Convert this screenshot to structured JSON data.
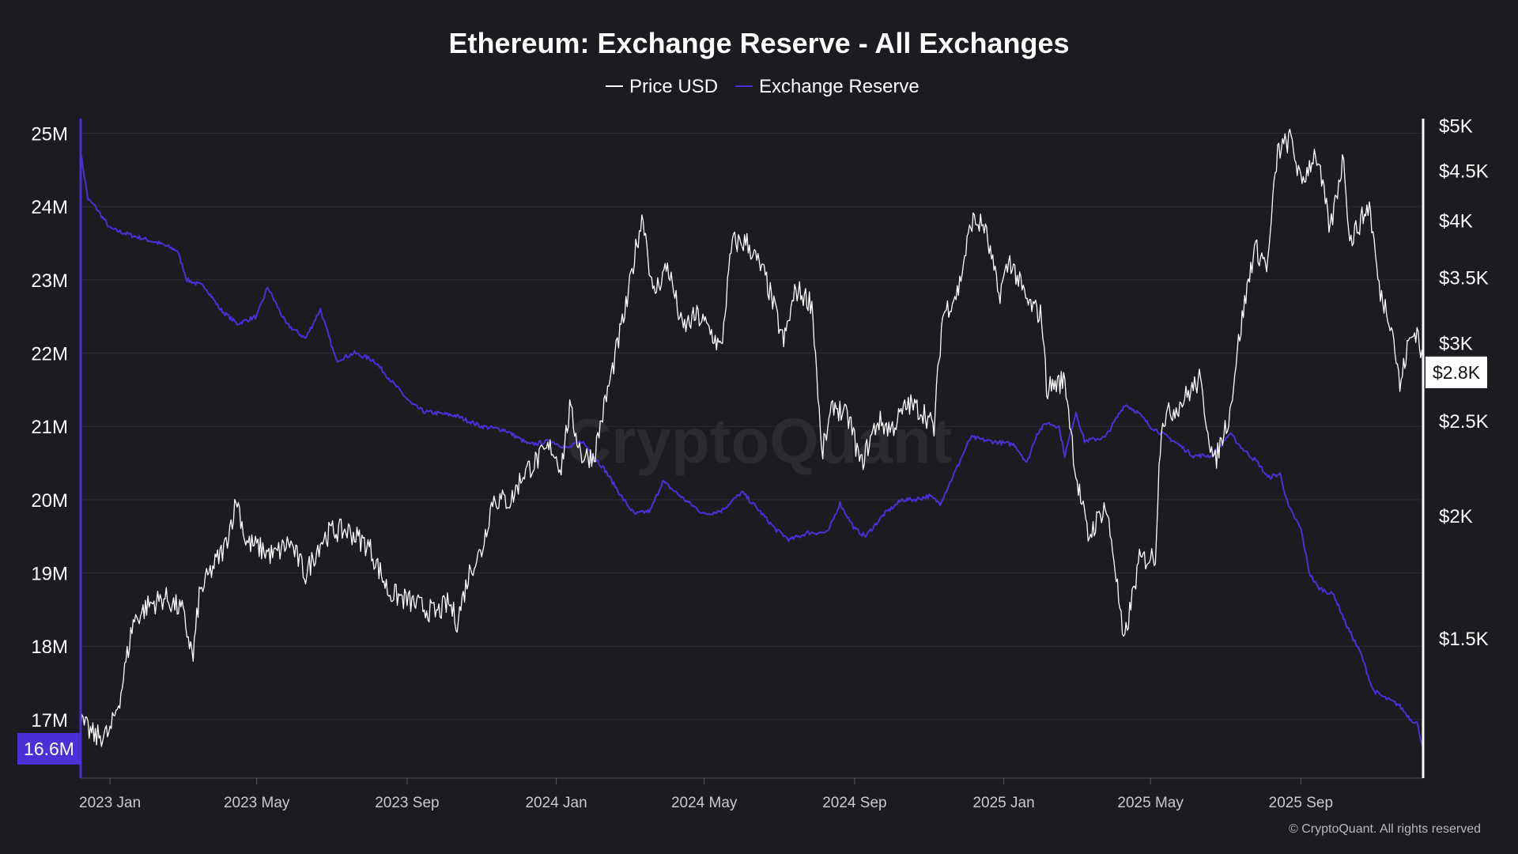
{
  "footer": "© CryptoQuant. All rights reserved",
  "watermark": "CryptoQuant",
  "colors": {
    "background": "#1b1b20",
    "price": "#ffffff",
    "reserve": "#4a30d6",
    "grid": "#2c2c33",
    "badge_reserve_bg": "#4a30d6",
    "badge_price_bg": "#ffffff"
  },
  "chart_data": {
    "type": "line",
    "title": "Ethereum: Exchange Reserve - All Exchanges",
    "legend": {
      "placement": "top-center"
    },
    "grid": true,
    "x_axis": {
      "range": [
        "2022-12-08",
        "2025-12-10"
      ],
      "ticks": [
        {
          "label": "2023 Jan",
          "date": "2023-01-01"
        },
        {
          "label": "2023 May",
          "date": "2023-05-01"
        },
        {
          "label": "2023 Sep",
          "date": "2023-09-01"
        },
        {
          "label": "2024 Jan",
          "date": "2024-01-01"
        },
        {
          "label": "2024 May",
          "date": "2024-05-01"
        },
        {
          "label": "2024 Sep",
          "date": "2024-09-01"
        },
        {
          "label": "2025 Jan",
          "date": "2025-01-01"
        },
        {
          "label": "2025 May",
          "date": "2025-05-01"
        },
        {
          "label": "2025 Sep",
          "date": "2025-09-01"
        }
      ]
    },
    "y_left": {
      "scale": "linear",
      "range": [
        16.2,
        25.2
      ],
      "ticks": [
        {
          "label": "25M",
          "value": 25
        },
        {
          "label": "24M",
          "value": 24
        },
        {
          "label": "23M",
          "value": 23
        },
        {
          "label": "22M",
          "value": 22
        },
        {
          "label": "21M",
          "value": 21
        },
        {
          "label": "20M",
          "value": 20
        },
        {
          "label": "19M",
          "value": 19
        },
        {
          "label": "18M",
          "value": 18
        },
        {
          "label": "17M",
          "value": 17
        }
      ],
      "current_label": "16.6M",
      "current_value": 16.6
    },
    "y_right": {
      "scale": "log",
      "range": [
        1080,
        5080
      ],
      "ticks": [
        {
          "label": "$5K",
          "value": 5000
        },
        {
          "label": "$4.5K",
          "value": 4500
        },
        {
          "label": "$4K",
          "value": 4000
        },
        {
          "label": "$3.5K",
          "value": 3500
        },
        {
          "label": "$3K",
          "value": 3000
        },
        {
          "label": "$2.5K",
          "value": 2500
        },
        {
          "label": "$2K",
          "value": 2000
        },
        {
          "label": "$1.5K",
          "value": 1500
        }
      ],
      "current_label": "$2.8K",
      "current_value": 2800
    },
    "series": [
      {
        "name": "Price USD",
        "axis": "right",
        "color": "#ffffff",
        "points": [
          [
            "2022-12-08",
            1230
          ],
          [
            "2022-12-20",
            1190
          ],
          [
            "2023-01-01",
            1200
          ],
          [
            "2023-01-10",
            1320
          ],
          [
            "2023-01-20",
            1560
          ],
          [
            "2023-02-01",
            1620
          ],
          [
            "2023-02-15",
            1650
          ],
          [
            "2023-03-01",
            1600
          ],
          [
            "2023-03-10",
            1430
          ],
          [
            "2023-03-15",
            1660
          ],
          [
            "2023-03-25",
            1760
          ],
          [
            "2023-04-05",
            1860
          ],
          [
            "2023-04-15",
            2080
          ],
          [
            "2023-04-22",
            1880
          ],
          [
            "2023-05-01",
            1860
          ],
          [
            "2023-05-15",
            1820
          ],
          [
            "2023-05-28",
            1880
          ],
          [
            "2023-06-10",
            1740
          ],
          [
            "2023-06-22",
            1880
          ],
          [
            "2023-07-01",
            1930
          ],
          [
            "2023-07-15",
            1930
          ],
          [
            "2023-08-01",
            1860
          ],
          [
            "2023-08-17",
            1670
          ],
          [
            "2023-09-01",
            1640
          ],
          [
            "2023-09-10",
            1620
          ],
          [
            "2023-09-25",
            1590
          ],
          [
            "2023-10-05",
            1630
          ],
          [
            "2023-10-12",
            1560
          ],
          [
            "2023-10-23",
            1770
          ],
          [
            "2023-11-01",
            1840
          ],
          [
            "2023-11-10",
            2080
          ],
          [
            "2023-11-25",
            2070
          ],
          [
            "2023-12-05",
            2210
          ],
          [
            "2023-12-15",
            2270
          ],
          [
            "2023-12-28",
            2350
          ],
          [
            "2024-01-05",
            2240
          ],
          [
            "2024-01-12",
            2560
          ],
          [
            "2024-01-22",
            2300
          ],
          [
            "2024-02-01",
            2300
          ],
          [
            "2024-02-15",
            2780
          ],
          [
            "2024-02-28",
            3300
          ],
          [
            "2024-03-08",
            3860
          ],
          [
            "2024-03-12",
            4050
          ],
          [
            "2024-03-20",
            3350
          ],
          [
            "2024-04-01",
            3600
          ],
          [
            "2024-04-13",
            3100
          ],
          [
            "2024-04-25",
            3200
          ],
          [
            "2024-05-05",
            3100
          ],
          [
            "2024-05-15",
            2950
          ],
          [
            "2024-05-24",
            3800
          ],
          [
            "2024-06-05",
            3800
          ],
          [
            "2024-06-20",
            3500
          ],
          [
            "2024-07-05",
            3000
          ],
          [
            "2024-07-15",
            3400
          ],
          [
            "2024-07-28",
            3300
          ],
          [
            "2024-08-05",
            2300
          ],
          [
            "2024-08-15",
            2600
          ],
          [
            "2024-08-28",
            2500
          ],
          [
            "2024-09-06",
            2250
          ],
          [
            "2024-09-20",
            2500
          ],
          [
            "2024-10-01",
            2450
          ],
          [
            "2024-10-15",
            2600
          ],
          [
            "2024-10-28",
            2550
          ],
          [
            "2024-11-05",
            2450
          ],
          [
            "2024-11-12",
            3200
          ],
          [
            "2024-11-25",
            3400
          ],
          [
            "2024-12-06",
            4000
          ],
          [
            "2024-12-16",
            3950
          ],
          [
            "2024-12-28",
            3350
          ],
          [
            "2025-01-06",
            3650
          ],
          [
            "2025-01-20",
            3300
          ],
          [
            "2025-02-01",
            3200
          ],
          [
            "2025-02-05",
            2700
          ],
          [
            "2025-02-20",
            2750
          ],
          [
            "2025-03-01",
            2200
          ],
          [
            "2025-03-11",
            1900
          ],
          [
            "2025-03-25",
            2050
          ],
          [
            "2025-04-01",
            1820
          ],
          [
            "2025-04-09",
            1470
          ],
          [
            "2025-04-22",
            1800
          ],
          [
            "2025-05-05",
            1820
          ],
          [
            "2025-05-10",
            2500
          ],
          [
            "2025-05-25",
            2600
          ],
          [
            "2025-06-10",
            2750
          ],
          [
            "2025-06-22",
            2250
          ],
          [
            "2025-07-05",
            2550
          ],
          [
            "2025-07-12",
            3000
          ],
          [
            "2025-07-25",
            3750
          ],
          [
            "2025-08-05",
            3600
          ],
          [
            "2025-08-13",
            4700
          ],
          [
            "2025-08-24",
            4850
          ],
          [
            "2025-09-01",
            4350
          ],
          [
            "2025-09-13",
            4700
          ],
          [
            "2025-09-25",
            3900
          ],
          [
            "2025-10-06",
            4650
          ],
          [
            "2025-10-11",
            3800
          ],
          [
            "2025-10-27",
            4150
          ],
          [
            "2025-11-04",
            3400
          ],
          [
            "2025-11-14",
            3150
          ],
          [
            "2025-11-21",
            2700
          ],
          [
            "2025-11-28",
            3000
          ],
          [
            "2025-12-05",
            3100
          ],
          [
            "2025-12-10",
            2850
          ]
        ]
      },
      {
        "name": "Exchange Reserve",
        "axis": "left",
        "color": "#4a30d6",
        "points": [
          [
            "2022-12-08",
            24.75
          ],
          [
            "2022-12-14",
            24.1
          ],
          [
            "2022-12-20",
            24.0
          ],
          [
            "2023-01-01",
            23.7
          ],
          [
            "2023-01-20",
            23.6
          ],
          [
            "2023-02-10",
            23.5
          ],
          [
            "2023-02-25",
            23.4
          ],
          [
            "2023-03-05",
            23.0
          ],
          [
            "2023-03-20",
            22.9
          ],
          [
            "2023-04-01",
            22.6
          ],
          [
            "2023-04-15",
            22.4
          ],
          [
            "2023-05-01",
            22.5
          ],
          [
            "2023-05-10",
            22.9
          ],
          [
            "2023-05-25",
            22.4
          ],
          [
            "2023-06-10",
            22.2
          ],
          [
            "2023-06-22",
            22.6
          ],
          [
            "2023-07-05",
            21.9
          ],
          [
            "2023-07-20",
            22.0
          ],
          [
            "2023-08-05",
            21.9
          ],
          [
            "2023-08-20",
            21.6
          ],
          [
            "2023-09-05",
            21.3
          ],
          [
            "2023-09-15",
            21.2
          ],
          [
            "2023-10-10",
            21.15
          ],
          [
            "2023-11-01",
            21.0
          ],
          [
            "2023-11-20",
            20.95
          ],
          [
            "2023-12-10",
            20.75
          ],
          [
            "2023-12-28",
            20.8
          ],
          [
            "2024-01-10",
            20.7
          ],
          [
            "2024-01-22",
            20.8
          ],
          [
            "2024-02-10",
            20.4
          ],
          [
            "2024-02-25",
            20.0
          ],
          [
            "2024-03-05",
            19.8
          ],
          [
            "2024-03-18",
            19.85
          ],
          [
            "2024-03-28",
            20.25
          ],
          [
            "2024-04-15",
            20.0
          ],
          [
            "2024-05-01",
            19.8
          ],
          [
            "2024-05-15",
            19.85
          ],
          [
            "2024-06-01",
            20.1
          ],
          [
            "2024-06-15",
            19.85
          ],
          [
            "2024-06-28",
            19.6
          ],
          [
            "2024-07-10",
            19.45
          ],
          [
            "2024-07-25",
            19.55
          ],
          [
            "2024-08-10",
            19.55
          ],
          [
            "2024-08-20",
            19.95
          ],
          [
            "2024-09-01",
            19.6
          ],
          [
            "2024-09-10",
            19.5
          ],
          [
            "2024-09-25",
            19.8
          ],
          [
            "2024-10-10",
            20.0
          ],
          [
            "2024-10-20",
            20.0
          ],
          [
            "2024-11-01",
            20.05
          ],
          [
            "2024-11-10",
            19.95
          ],
          [
            "2024-11-20",
            20.3
          ],
          [
            "2024-12-05",
            20.85
          ],
          [
            "2024-12-20",
            20.8
          ],
          [
            "2025-01-10",
            20.75
          ],
          [
            "2025-01-20",
            20.5
          ],
          [
            "2025-01-28",
            20.9
          ],
          [
            "2025-02-05",
            21.05
          ],
          [
            "2025-02-15",
            21.0
          ],
          [
            "2025-02-20",
            20.6
          ],
          [
            "2025-03-01",
            21.2
          ],
          [
            "2025-03-08",
            20.8
          ],
          [
            "2025-03-25",
            20.85
          ],
          [
            "2025-04-10",
            21.3
          ],
          [
            "2025-04-20",
            21.2
          ],
          [
            "2025-05-01",
            21.0
          ],
          [
            "2025-05-20",
            20.8
          ],
          [
            "2025-06-05",
            20.6
          ],
          [
            "2025-06-20",
            20.6
          ],
          [
            "2025-07-05",
            20.9
          ],
          [
            "2025-07-15",
            20.7
          ],
          [
            "2025-07-28",
            20.5
          ],
          [
            "2025-08-05",
            20.3
          ],
          [
            "2025-08-15",
            20.35
          ],
          [
            "2025-08-22",
            19.9
          ],
          [
            "2025-09-01",
            19.6
          ],
          [
            "2025-09-08",
            19.0
          ],
          [
            "2025-09-15",
            18.8
          ],
          [
            "2025-09-28",
            18.7
          ],
          [
            "2025-10-08",
            18.3
          ],
          [
            "2025-10-20",
            17.9
          ],
          [
            "2025-10-30",
            17.4
          ],
          [
            "2025-11-08",
            17.3
          ],
          [
            "2025-11-20",
            17.2
          ],
          [
            "2025-11-30",
            17.0
          ],
          [
            "2025-12-05",
            16.95
          ],
          [
            "2025-12-10",
            16.6
          ]
        ]
      }
    ]
  }
}
